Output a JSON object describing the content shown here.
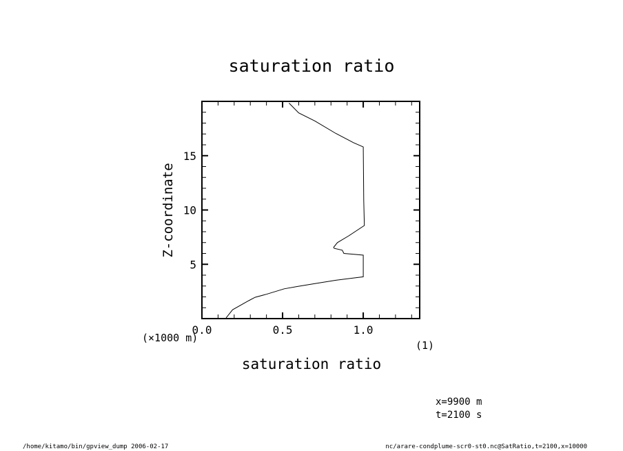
{
  "chart_data": {
    "type": "line",
    "title": "saturation ratio",
    "xlabel": "saturation ratio",
    "xunit": "(1)",
    "ylabel": "Z-coordinate",
    "yunit": "(×1000 m)",
    "xlim": [
      0,
      1.35
    ],
    "ylim": [
      0,
      20
    ],
    "xticks": [
      0.0,
      0.5,
      1.0
    ],
    "xtick_labels": [
      "0.0",
      "0.5",
      "1.0"
    ],
    "yticks": [
      5,
      10,
      15
    ],
    "ytick_labels": [
      "5",
      "10",
      "15"
    ],
    "grid": false,
    "series": [
      {
        "x": [
          0.15,
          0.19,
          0.29,
          0.33,
          0.4,
          0.51,
          0.59,
          0.7,
          0.83,
          1.0,
          1.0,
          0.88,
          0.87,
          0.82,
          0.817,
          0.84,
          0.91,
          1.007,
          1.003,
          1.0,
          0.94,
          0.83,
          0.7,
          0.6,
          0.54
        ],
        "y": [
          0.07,
          0.81,
          1.65,
          1.96,
          2.24,
          2.74,
          2.95,
          3.22,
          3.53,
          3.85,
          5.84,
          6.0,
          6.3,
          6.47,
          6.57,
          7.0,
          7.62,
          8.57,
          10.87,
          15.8,
          16.2,
          17.05,
          18.2,
          18.94,
          19.84
        ]
      }
    ],
    "annotations": [
      "x=9900 m",
      "t=2100 s"
    ]
  },
  "footer": {
    "left": "/home/kitamo/bin/gpview_dump  2006-02-17",
    "right": "nc/arare-condplume-scr0-st0.nc@SatRatio,t=2100,x=10000"
  }
}
